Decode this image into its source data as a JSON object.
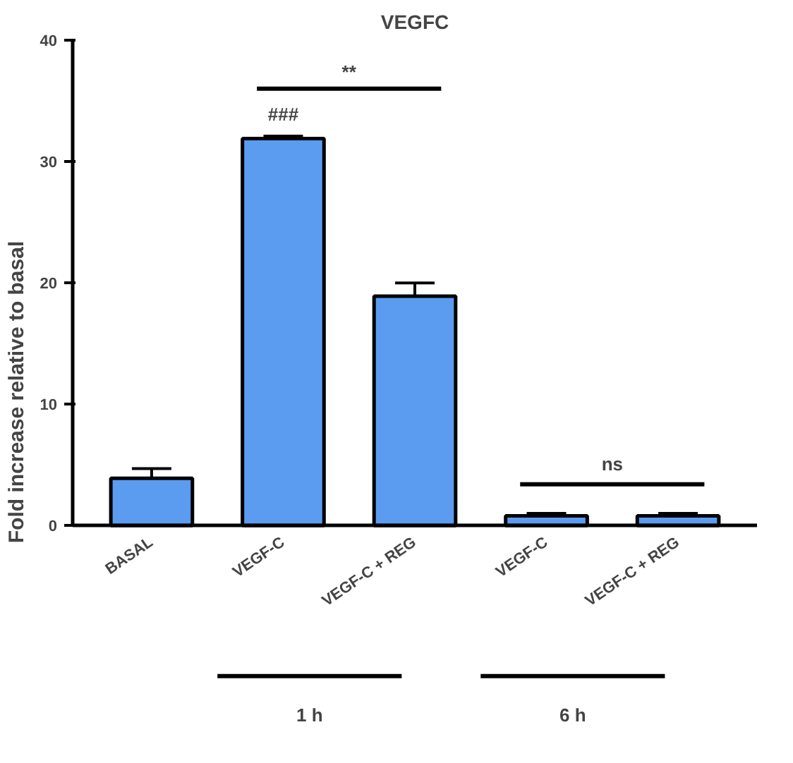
{
  "chart_data": {
    "type": "bar",
    "title": "VEGFC",
    "ylabel": "Fold increase relative to basal",
    "categories": [
      "BASAL",
      "VEGF-C",
      "VEGF-C + REG",
      "VEGF-C",
      "VEGF-C + REG"
    ],
    "values": [
      3.9,
      31.9,
      18.9,
      0.8,
      0.8
    ],
    "errors": [
      [
        3.9,
        4.7
      ],
      [
        31.9,
        32.1
      ],
      [
        18.9,
        20.0
      ],
      [
        0.8,
        1.0
      ],
      [
        0.8,
        1.0
      ]
    ],
    "color": "#5b9bf0",
    "ylim": [
      0,
      40
    ],
    "yticks": [
      0,
      10,
      20,
      30,
      40
    ],
    "grid": false,
    "annotations": [
      "###",
      "**",
      "ns",
      "1 h",
      "6 h"
    ]
  }
}
